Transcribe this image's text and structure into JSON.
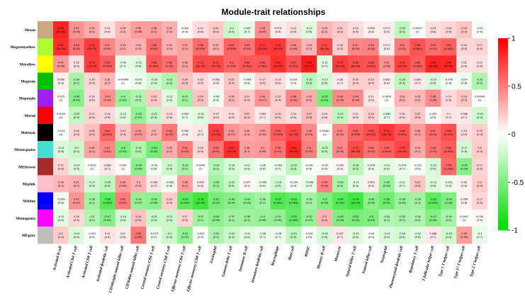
{
  "chart_data": {
    "type": "heatmap",
    "title": "Module-trait relationships",
    "rows": [
      {
        "name": "Metan",
        "color": "#c8a882"
      },
      {
        "name": "Megreenyellow",
        "color": "#adff2f"
      },
      {
        "name": "Meyellow",
        "color": "#ffff00"
      },
      {
        "name": "Megreen",
        "color": "#00c000"
      },
      {
        "name": "Mepurple",
        "color": "#a020f0"
      },
      {
        "name": "Mered",
        "color": "#ff0000"
      },
      {
        "name": "Meblack",
        "color": "#000000"
      },
      {
        "name": "Meturquoise",
        "color": "#40e0d0"
      },
      {
        "name": "MEbrown",
        "color": "#a52a2a"
      },
      {
        "name": "Mepink",
        "color": "#ffc0cb"
      },
      {
        "name": "Meblue",
        "color": "#0000ff"
      },
      {
        "name": "Memagenta",
        "color": "#ff00ff"
      },
      {
        "name": "MEgrey",
        "color": "#bebebe"
      }
    ],
    "columns": [
      "Activated B cell",
      "Activated CD4 T cell",
      "Activated CD8 T cell",
      "Activated dendritic cell",
      "CD56bright natural killer cell",
      "CD56dim natural killer cell",
      "Central memory CD4 T cell",
      "Central memory CD8 T cell",
      "Effector memeory CD4 T cell",
      "Effector memeory CD8 T cell",
      "Eosinophil",
      "Gamma delta T cell",
      "Immature B cell",
      "Immature dendritic cell",
      "Macrophage",
      "Mast cell",
      "MDSC",
      "Memory B cell",
      "Monocyte",
      "Natural killer T cell",
      "Natural killer cell",
      "Neutrophil",
      "Plasmacytoid dendritic cell",
      "Regulatory T cell",
      "T follicular helper cell",
      "Type 1 T helper cell",
      "Type 17 T helper cell",
      "Type 2 T helper cell"
    ],
    "values": [
      [
        0.86,
        0.42,
        0.33,
        0.12,
        0.28,
        0.39,
        0.38,
        0.31,
        0.024,
        0.14,
        0.21,
        -0.2,
        -0.097,
        0.44,
        0.074,
        0.12,
        -0.12,
        0.29,
        0.21,
        0.14,
        0.065,
        0.072,
        -0.25,
        0.00027,
        0.13,
        0.16,
        0.23,
        -0.03
      ],
      [
        0.81,
        0.54,
        0.76,
        0.47,
        0.33,
        0.31,
        0.58,
        0.31,
        0.37,
        0.58,
        0.31,
        0.61,
        0.54,
        0.77,
        0.78,
        0.46,
        0.29,
        0.71,
        0.19,
        0.47,
        0.49,
        0.072,
        0.52,
        0.68,
        0.57,
        0.62,
        0.16,
        0.17
      ],
      [
        0.41,
        0.12,
        0.76,
        0.63,
        -0.09,
        -0.12,
        0.66,
        0.56,
        0.36,
        0.72,
        0.71,
        0.6,
        0.66,
        0.65,
        0.81,
        0.67,
        0.89,
        -0.11,
        0.76,
        0.69,
        0.68,
        0.42,
        0.74,
        0.64,
        0.85,
        0.84,
        0.11,
        0.12
      ],
      [
        0.068,
        -0.34,
        0.16,
        0.28,
        -0.00084,
        -0.077,
        -0.18,
        -0.31,
        0.24,
        0.15,
        0.066,
        0.22,
        -0.054,
        0.17,
        0.13,
        0.018,
        -0.26,
        -0.17,
        0.08,
        0.19,
        0.19,
        0.063,
        -0.25,
        0.083,
        -0.15,
        -0.045,
        -0.07,
        -0.31
      ],
      [
        0.015,
        -0.46,
        0.14,
        0.43,
        -0.4,
        -0.31,
        0.22,
        -0.12,
        -0.37,
        0.24,
        -0.06,
        0.28,
        0.21,
        0.42,
        0.19,
        0.48,
        0.32,
        -0.52,
        0.46,
        0.46,
        0.11,
        -0.0014,
        0.29,
        0.28,
        0.45,
        0.14,
        0.23,
        0.00043
      ],
      [
        0.0029,
        -0.24,
        0.17,
        0.15,
        -0.12,
        -0.42,
        -0.22,
        0.13,
        -0.081,
        -0.13,
        0.13,
        0.14,
        0.22,
        0.084,
        0.19,
        0.13,
        0.27,
        0.14,
        -0.24,
        0.11,
        0.19,
        -0.083,
        0.15,
        0.22,
        0.023,
        0.1,
        0.086,
        -0.19
      ],
      [
        -0.014,
        0.16,
        0.25,
        0.61,
        0.21,
        0.41,
        0.3,
        0.53,
        0.066,
        0.1,
        0.75,
        0.41,
        0.35,
        0.39,
        0.63,
        0.72,
        0.46,
        0.00061,
        0.47,
        0.61,
        0.69,
        0.79,
        0.68,
        0.38,
        0.57,
        0.69,
        0.13,
        0.19
      ],
      [
        -0.14,
        -0.2,
        0.36,
        0.47,
        -0.5,
        -0.31,
        -0.54,
        0.32,
        0.51,
        0.16,
        0.55,
        0.82,
        0.38,
        0.4,
        0.55,
        0.84,
        0.5,
        -0.23,
        0.47,
        0.71,
        0.55,
        0.62,
        0.73,
        0.34,
        0.55,
        0.64,
        -0.17,
        0.2
      ],
      [
        0.17,
        -0.14,
        0.0032,
        0.089,
        0.015,
        -0.45,
        -0.06,
        -0.2,
        -0.34,
        0.0044,
        -0.29,
        -0.16,
        -0.12,
        -0.06,
        -0.083,
        -0.25,
        -0.031,
        -0.04,
        0.039,
        -0.26,
        -0.074,
        -0.12,
        -0.079,
        -0.021,
        -0.15,
        0.59,
        -0.46,
        0.17
      ],
      [
        0.28,
        0.31,
        -0.17,
        -0.25,
        0.39,
        0.3,
        0.096,
        -0.065,
        0.38,
        0.069,
        -0.36,
        -0.22,
        0.027,
        -0.065,
        -0.18,
        -0.034,
        -0.098,
        0.48,
        -0.33,
        -0.11,
        0.063,
        -0.39,
        -0.11,
        0.22,
        -0.13,
        -0.061,
        0.06,
        0.2
      ],
      [
        -0.059,
        0.42,
        -0.36,
        -0.66,
        0.52,
        -0.41,
        -0.45,
        0.19,
        -0.62,
        -0.76,
        -0.52,
        -0.46,
        -0.43,
        -0.36,
        -0.67,
        -0.63,
        -0.36,
        -0.5,
        -0.66,
        -0.74,
        -0.45,
        -0.56,
        -0.39,
        -0.36,
        -0.62,
        -0.49,
        0.054,
        0.17
      ],
      [
        -0.11,
        0.16,
        -0.3,
        -0.47,
        -0.16,
        0.24,
        -0.21,
        -0.21,
        0.17,
        -0.37,
        -0.45,
        -0.37,
        -0.38,
        -0.4,
        -0.41,
        -0.59,
        -0.42,
        0.3,
        -0.49,
        -0.52,
        -0.5,
        -0.29,
        -0.33,
        -0.31,
        -0.47,
        -0.34,
        0.0047,
        0.034
      ],
      [
        0.2,
        -0.14,
        -0.021,
        0.11,
        0.07,
        0.53,
        -0.079,
        -0.2,
        -0.41,
        -0.022,
        -0.31,
        -0.21,
        -0.11,
        -0.08,
        -0.08,
        -0.24,
        -0.041,
        -0.16,
        0.087,
        -0.13,
        -0.04,
        -0.14,
        -0.16,
        -0.12,
        0.086,
        -0.19,
        0.39,
        -0.1
      ]
    ],
    "pvalues": [
      [
        "2e-05",
        "0.08",
        "0.2",
        "0.6",
        "0.2",
        "0.06",
        "0.1",
        "0.2",
        "0.9",
        "0.6",
        "0.4",
        "0.4",
        "0.7",
        "0.06",
        "0.8",
        "0.6",
        "0.6",
        "0.2",
        "0.4",
        "0.6",
        "0.8",
        "0.8",
        "0.3",
        "1",
        "0.6",
        "0.5",
        "0.3",
        "0.9"
      ],
      [
        "2e-05",
        "0.02",
        "2e-04",
        "0.04",
        "0.2",
        "0.2",
        "0.01",
        "0.2",
        "0.1",
        "0.009",
        "0.2",
        "0.005",
        "0.02",
        "1e-04",
        "9e-05",
        "0.05",
        "0.2",
        "6e-04",
        "0.4",
        "0.04",
        "0.03",
        "0.8",
        "0.02",
        "0.001",
        "0.01",
        "0.005",
        "0.5",
        "0.5"
      ],
      [
        "0.08",
        "0.6",
        "2e-04",
        "0.004",
        "0.7",
        "0.6",
        "0.002",
        "0.01",
        "0.1",
        "5e-04",
        "7e-04",
        "0.006",
        "0.002",
        "0.002",
        "2e-05",
        "0.001",
        "2e-07",
        "0.7",
        "2e-04",
        "8e-04",
        "0.001",
        "0.08",
        "3e-04",
        "0.003",
        "3e-06",
        "4e-06",
        "0.6",
        "0.6"
      ],
      [
        "0.8",
        "0.1",
        "0.5",
        "0.2",
        "1",
        "0.8",
        "0.4",
        "0.2",
        "0.3",
        "0.5",
        "0.8",
        "0.4",
        "0.8",
        "0.5",
        "0.6",
        "0.9",
        "0.3",
        "0.5",
        "0.7",
        "0.4",
        "0.4",
        "0.8",
        "0.3",
        "0.7",
        "0.5",
        "0.9",
        "0.8",
        "0.2"
      ],
      [
        "1",
        "0.04",
        "0.6",
        "0.06",
        "0.09",
        "0.2",
        "0.4",
        "0.6",
        "0.1",
        "0.3",
        "0.8",
        "0.2",
        "0.4",
        "0.07",
        "0.4",
        "0.03",
        "0.2",
        "0.02",
        "0.04",
        "0.04",
        "0.6",
        "1",
        "0.2",
        "0.2",
        "0.05",
        "0.6",
        "0.3",
        "1"
      ],
      [
        "1",
        "0.3",
        "0.5",
        "0.5",
        "0.6",
        "0.07",
        "0.3",
        "0.6",
        "0.7",
        "0.6",
        "0.6",
        "0.6",
        "0.4",
        "0.7",
        "0.4",
        "0.6",
        "0.3",
        "0.6",
        "0.3",
        "0.6",
        "0.4",
        "0.7",
        "0.5",
        "0.4",
        "0.9",
        "0.7",
        "0.7",
        "0.4"
      ],
      [
        "1",
        "0.5",
        "0.3",
        "0.004",
        "0.4",
        "0.07",
        "0.2",
        "0.02",
        "0.8",
        "0.7",
        "1e-04",
        "0.07",
        "0.1",
        "0.09",
        "0.003",
        "4e-04",
        "0.04",
        "1",
        "0.04",
        "0.005",
        "0.001",
        "4e-05",
        "0.001",
        "0.1",
        "0.01",
        "0.001",
        "0.6",
        "0.4"
      ],
      [
        "0.6",
        "0.4",
        "0.1",
        "0.04",
        "0.02",
        "0.2",
        "0.02",
        "0.2",
        "0.02",
        "0.5",
        "0.01",
        "1e-05",
        "0.1",
        "0.08",
        "0.01",
        "4e-06",
        "0.02",
        "0.3",
        "0.04",
        "5e-04",
        "0.01",
        "0.004",
        "3e-04",
        "0.1",
        "0.01",
        "0.002",
        "0.5",
        "0.4"
      ],
      [
        "0.5",
        "0.6",
        "1",
        "0.7",
        "1",
        "0.04",
        "0.8",
        "0.4",
        "0.1",
        "1",
        "0.2",
        "0.5",
        "0.6",
        "0.8",
        "0.7",
        "0.3",
        "0.9",
        "0.9",
        "0.9",
        "0.3",
        "0.8",
        "0.6",
        "0.7",
        "0.9",
        "0.5",
        "0.006",
        "0.04",
        "0.5"
      ],
      [
        "0.2",
        "0.2",
        "0.5",
        "0.3",
        "0.09",
        "0.2",
        "0.7",
        "0.8",
        "0.1",
        "0.8",
        "0.1",
        "0.4",
        "0.9",
        "0.8",
        "0.5",
        "0.9",
        "0.7",
        "0.03",
        "0.2",
        "0.6",
        "0.8",
        "0.09",
        "0.7",
        "0.4",
        "0.6",
        "0.8",
        "0.8",
        "0.4"
      ],
      [
        "0.8",
        "0.07",
        "0.1",
        "0.002",
        "0.02",
        "0.07",
        "0.05",
        "0.4",
        "0.004",
        "1e-04",
        "0.02",
        "0.04",
        "0.06",
        "0.1",
        "0.001",
        "0.003",
        "0.1",
        "0.03",
        "0.001",
        "2e-04",
        "0.05",
        "0.01",
        "0.09",
        "0.1",
        "0.004",
        "0.03",
        "0.8",
        "0.5"
      ],
      [
        "0.6",
        "0.5",
        "0.2",
        "0.04",
        "0.5",
        "0.3",
        "0.4",
        "0.4",
        "0.5",
        "0.1",
        "0.05",
        "0.1",
        "0.1",
        "0.08",
        "0.08",
        "0.006",
        "0.07",
        "0.2",
        "0.03",
        "0.02",
        "0.03",
        "0.2",
        "0.2",
        "0.2",
        "0.04",
        "0.1",
        "1",
        "0.9"
      ],
      [
        "0.4",
        "0.6",
        "0.9",
        "0.6",
        "0.8",
        "0.02",
        "0.7",
        "0.4",
        "0.07",
        "0.9",
        "0.2",
        "0.4",
        "0.6",
        "0.7",
        "0.7",
        "0.3",
        "0.9",
        "0.5",
        "0.7",
        "0.6",
        "0.9",
        "0.6",
        "0.5",
        "0.6",
        "0.7",
        "0.4",
        "0.09",
        "0.7"
      ]
    ],
    "colorbar": {
      "ticks": [
        1,
        0.5,
        0,
        -0.5,
        -1
      ],
      "low_color": "#00dd00",
      "mid_color": "#ffffff",
      "high_color": "#ff0000"
    },
    "grid": false,
    "legend": "right"
  }
}
